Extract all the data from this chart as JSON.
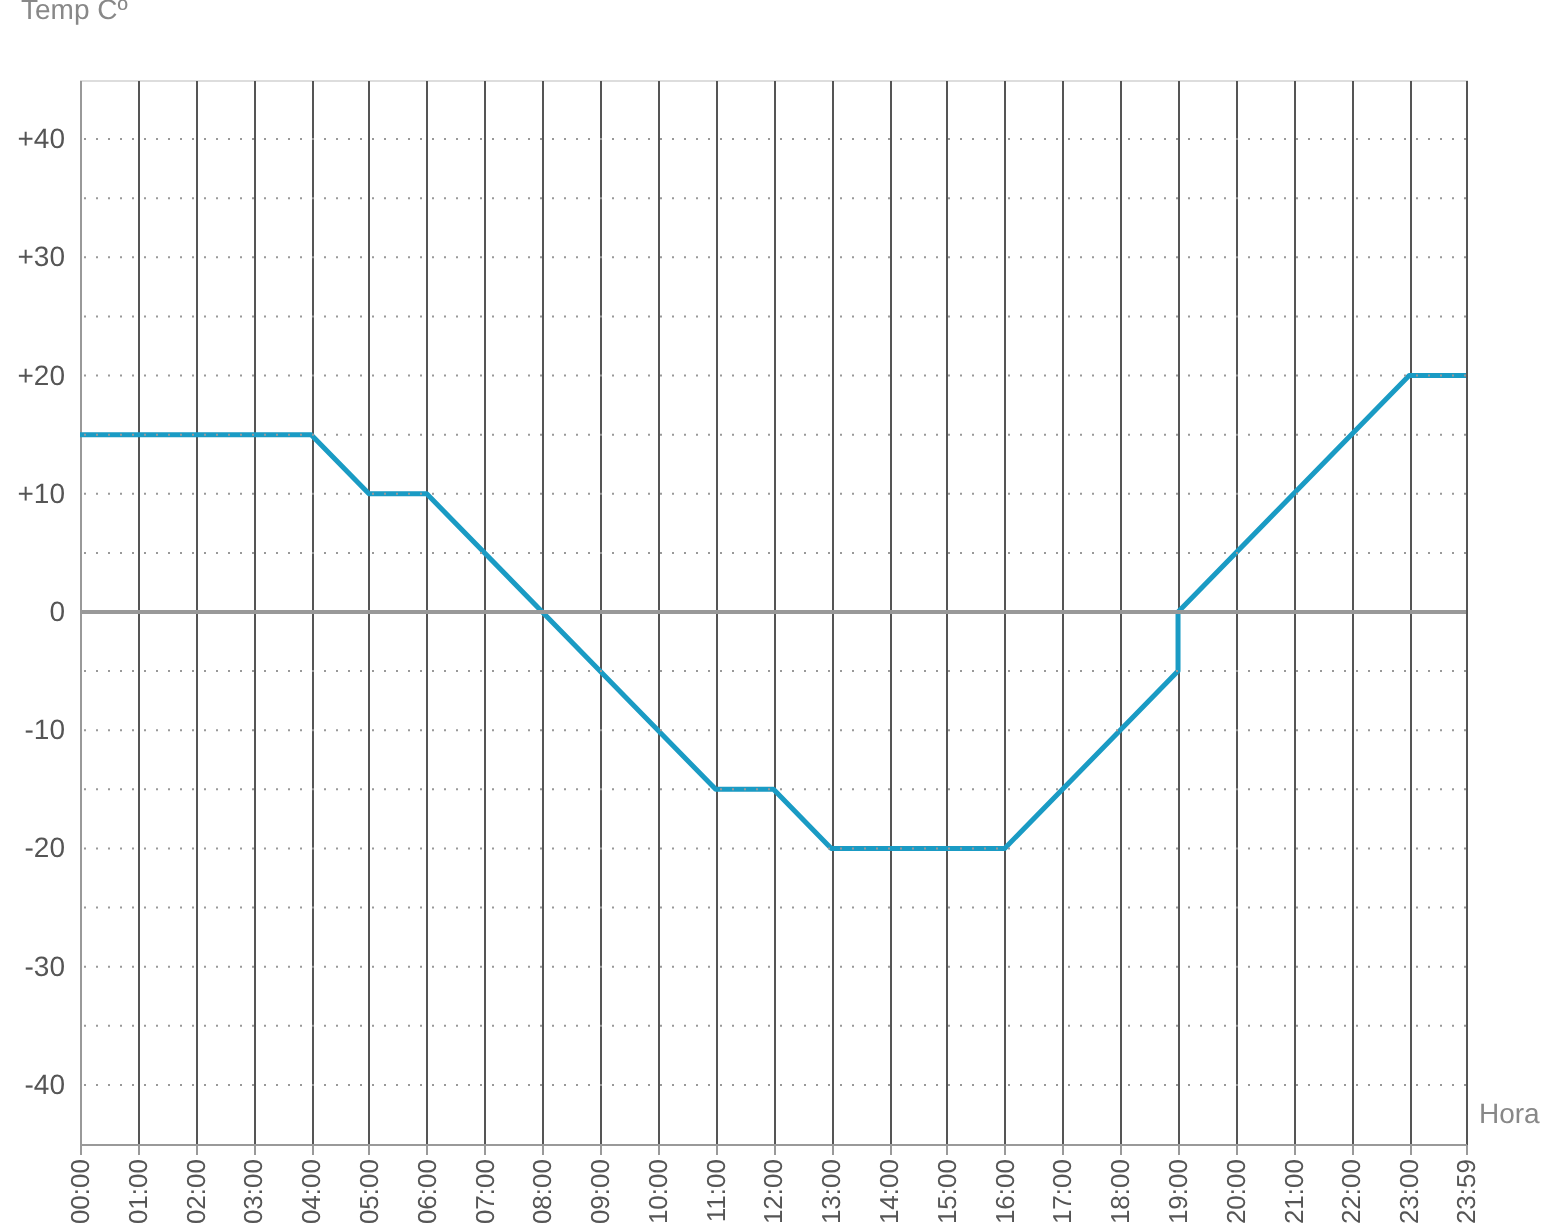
{
  "chart_data": {
    "type": "line",
    "xlabel": "Hora",
    "ylabel": "Temp Cº",
    "x": [
      0,
      4,
      5,
      6,
      8,
      11,
      12,
      13,
      16,
      19,
      19,
      23,
      23.983
    ],
    "series": [
      {
        "color": "#1a9bc4",
        "values": [
          15,
          15,
          10,
          10,
          0,
          -15,
          -15,
          -20,
          -20,
          -5,
          0,
          20,
          20
        ]
      }
    ],
    "xlim": [
      0,
      23.983
    ],
    "xticks": [
      {
        "value": 0,
        "label": "00:00"
      },
      {
        "value": 1,
        "label": "01:00"
      },
      {
        "value": 2,
        "label": "02:00"
      },
      {
        "value": 3,
        "label": "03:00"
      },
      {
        "value": 4,
        "label": "04:00"
      },
      {
        "value": 5,
        "label": "05:00"
      },
      {
        "value": 6,
        "label": "06:00"
      },
      {
        "value": 7,
        "label": "07:00"
      },
      {
        "value": 8,
        "label": "08:00"
      },
      {
        "value": 9,
        "label": "09:00"
      },
      {
        "value": 10,
        "label": "10:00"
      },
      {
        "value": 11,
        "label": "11:00"
      },
      {
        "value": 12,
        "label": "12:00"
      },
      {
        "value": 13,
        "label": "13:00"
      },
      {
        "value": 14,
        "label": "14:00"
      },
      {
        "value": 15,
        "label": "15:00"
      },
      {
        "value": 16,
        "label": "16:00"
      },
      {
        "value": 17,
        "label": "17:00"
      },
      {
        "value": 18,
        "label": "18:00"
      },
      {
        "value": 19,
        "label": "19:00"
      },
      {
        "value": 20,
        "label": "20:00"
      },
      {
        "value": 21,
        "label": "21:00"
      },
      {
        "value": 22,
        "label": "22:00"
      },
      {
        "value": 23,
        "label": "23:00"
      },
      {
        "value": 23.983,
        "label": "23:59"
      }
    ],
    "ylim": [
      -45,
      45
    ],
    "yticks": [
      {
        "value": -40,
        "label": "-40"
      },
      {
        "value": -35,
        "label": null
      },
      {
        "value": -30,
        "label": "-30"
      },
      {
        "value": -25,
        "label": null
      },
      {
        "value": -20,
        "label": "-20"
      },
      {
        "value": -15,
        "label": null
      },
      {
        "value": -10,
        "label": "-10"
      },
      {
        "value": -5,
        "label": null
      },
      0,
      {
        "value": 5,
        "label": null
      },
      {
        "value": 10,
        "label": "+10"
      },
      {
        "value": 15,
        "label": null
      },
      {
        "value": 20,
        "label": "+20"
      },
      {
        "value": 25,
        "label": null
      },
      {
        "value": 30,
        "label": "+30"
      },
      {
        "value": 35,
        "label": null
      },
      {
        "value": 40,
        "label": "+40"
      }
    ],
    "grid": true,
    "marker": "none",
    "line_style": "solid",
    "ref_lines": [
      {
        "axis": "y",
        "value": 0,
        "color": "#999999"
      }
    ]
  }
}
